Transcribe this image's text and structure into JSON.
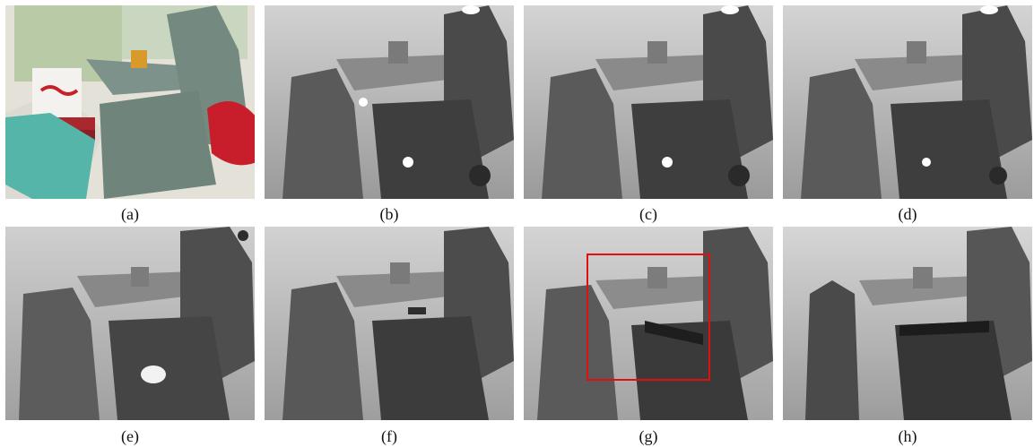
{
  "figure": {
    "panels": [
      {
        "id": "a",
        "label": "(a)",
        "kind": "rgb"
      },
      {
        "id": "b",
        "label": "(b)",
        "kind": "depth"
      },
      {
        "id": "c",
        "label": "(c)",
        "kind": "depth"
      },
      {
        "id": "d",
        "label": "(d)",
        "kind": "depth"
      },
      {
        "id": "e",
        "label": "(e)",
        "kind": "depth"
      },
      {
        "id": "f",
        "label": "(f)",
        "kind": "depth"
      },
      {
        "id": "g",
        "label": "(g)",
        "kind": "depth"
      },
      {
        "id": "h",
        "label": "(h)",
        "kind": "depth"
      }
    ],
    "highlight": {
      "panel": "g",
      "color": "#e01010"
    }
  }
}
